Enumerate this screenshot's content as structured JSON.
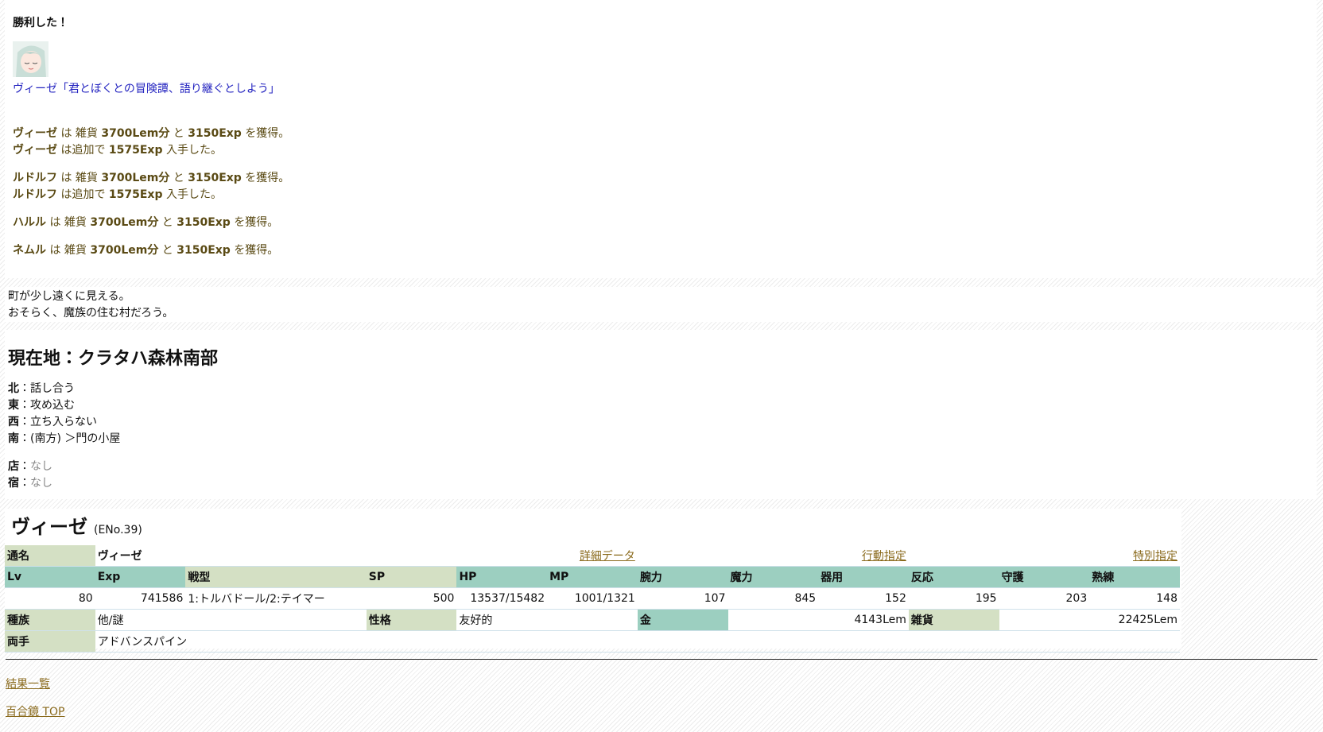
{
  "battle": {
    "title": "勝利した！",
    "quote": "ヴィーゼ「君とぼくとの冒険譚、語り継ぐとしよう」",
    "rewards": [
      {
        "lines": [
          [
            "ヴィーゼ",
            " は 雑貨 ",
            "3700Lem分",
            " と ",
            "3150Exp",
            " を獲得。"
          ],
          [
            "ヴィーゼ",
            " は追加で ",
            "1575Exp",
            " 入手した。"
          ]
        ]
      },
      {
        "lines": [
          [
            "ルドルフ",
            " は 雑貨 ",
            "3700Lem分",
            " と ",
            "3150Exp",
            " を獲得。"
          ],
          [
            "ルドルフ",
            " は追加で ",
            "1575Exp",
            " 入手した。"
          ]
        ]
      },
      {
        "lines": [
          [
            "ハルル",
            " は 雑貨 ",
            "3700Lem分",
            " と ",
            "3150Exp",
            " を獲得。"
          ]
        ]
      },
      {
        "lines": [
          [
            "ネムル",
            " は 雑貨 ",
            "3700Lem分",
            " と ",
            "3150Exp",
            " を獲得。"
          ]
        ]
      }
    ]
  },
  "narrative": [
    "町が少し遠くに見える。",
    "おそらく、魔族の住む村だろう。"
  ],
  "location": {
    "title": "現在地：クラタハ森林南部",
    "directions": [
      {
        "dir": "北",
        "label": "：話し合う"
      },
      {
        "dir": "東",
        "label": "：攻め込む"
      },
      {
        "dir": "西",
        "label": "：立ち入らない"
      },
      {
        "dir": "南",
        "label": "：(南方) ＞門の小屋"
      }
    ],
    "facilities": [
      {
        "name": "店",
        "label": "：",
        "value": "なし"
      },
      {
        "name": "宿",
        "label": "：",
        "value": "なし"
      }
    ]
  },
  "character": {
    "name": "ヴィーゼ",
    "eno": "(ENo.39)",
    "links": [
      "詳細データ",
      "行動指定",
      "特別指定"
    ],
    "alias": {
      "label": "通名",
      "value": "ヴィーゼ"
    },
    "stats": {
      "headers": [
        "Lv",
        "Exp",
        "戦型",
        "SP",
        "HP",
        "MP",
        "腕力",
        "魔力",
        "器用",
        "反応",
        "守護",
        "熟練"
      ],
      "values": [
        80,
        741586,
        "1:トルバドール/2:テイマー",
        500,
        "13537/15482",
        "1001/1321",
        107,
        845,
        152,
        195,
        203,
        148
      ]
    },
    "race": {
      "label": "種族",
      "value": "他/謎"
    },
    "personality": {
      "label": "性格",
      "value": "友好的"
    },
    "money": {
      "label": "金",
      "value": "4143Lem"
    },
    "goods": {
      "label": "雑貨",
      "value": "22425Lem"
    },
    "weapon": {
      "label": "両手",
      "value": "アドバンスパイン"
    }
  },
  "footer": {
    "links": [
      "結果一覧",
      "百合鏡 TOP"
    ]
  }
}
